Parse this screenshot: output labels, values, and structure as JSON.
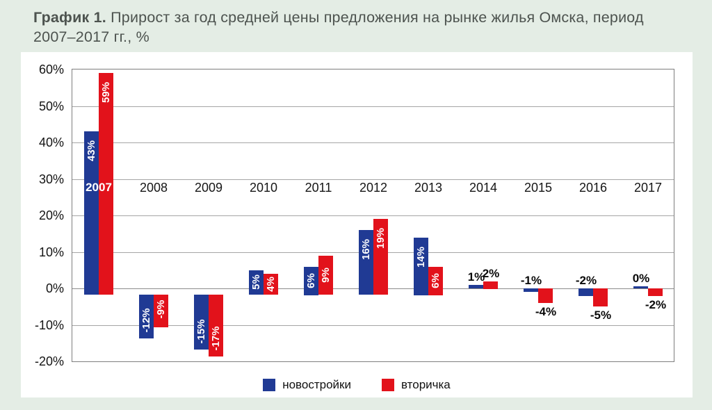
{
  "title": {
    "prefix": "График 1.",
    "line1": " Прирост за год средней цены предложения на рынке жилья Омска, период",
    "line2": "2007–2017 гг., %"
  },
  "colors": {
    "background": "#e4ede5",
    "panel": "#ffffff",
    "title_text": "#4d534f",
    "series_blue": "#203a94",
    "series_red": "#e2121b",
    "gridline": "#a5a5a5",
    "frame": "#7d7d7d"
  },
  "chart_data": {
    "type": "bar",
    "title": "Прирост за год средней цены предложения на рынке жилья Омска, период 2007–2017 гг., %",
    "categories": [
      "2007",
      "2008",
      "2009",
      "2010",
      "2011",
      "2012",
      "2013",
      "2014",
      "2015",
      "2016",
      "2017"
    ],
    "series": [
      {
        "name": "новостройки",
        "color": "#203a94",
        "values": [
          43,
          -12,
          -15,
          5,
          6,
          16,
          14,
          1,
          -1,
          -2,
          0
        ]
      },
      {
        "name": "вторичка",
        "color": "#e2121b",
        "values": [
          59,
          -9,
          -17,
          4,
          9,
          19,
          6,
          2,
          -4,
          -5,
          -2
        ]
      }
    ],
    "bar_labels": [
      [
        "43%",
        "-12%",
        "-15%",
        "5%",
        "6%",
        "16%",
        "14%",
        "1%",
        "-1%",
        "-2%",
        "0%"
      ],
      [
        "59%",
        "-9%",
        "-17%",
        "4%",
        "9%",
        "19%",
        "6%",
        "2%",
        "-4%",
        "-5%",
        "-2%"
      ]
    ],
    "label_modes": [
      [
        "in-top",
        "in-bottom",
        "in-bottom",
        "in-center",
        "in-center",
        "in-top",
        "in-top",
        "out-above",
        "out-above",
        "out-above",
        "out-above"
      ],
      [
        "in-top",
        "in-bottom",
        "in-bottom",
        "in-center",
        "in-center",
        "in-top",
        "in-center",
        "out-above",
        "out-below",
        "out-below",
        "out-below"
      ]
    ],
    "year_label_inside_bar": "2007",
    "xlabel": "",
    "ylabel": "",
    "ylim": [
      -20,
      60
    ],
    "yticks": [
      60,
      50,
      40,
      30,
      20,
      10,
      0,
      -10,
      -20
    ],
    "ytick_labels": [
      "60%",
      "50%",
      "40%",
      "30%",
      "20%",
      "10%",
      "0%",
      "-10%",
      "-20%"
    ],
    "grid": true,
    "legend_position": "bottom"
  },
  "legend": {
    "items": [
      {
        "label": "новостройки",
        "color": "#203a94"
      },
      {
        "label": "вторичка",
        "color": "#e2121b"
      }
    ]
  }
}
